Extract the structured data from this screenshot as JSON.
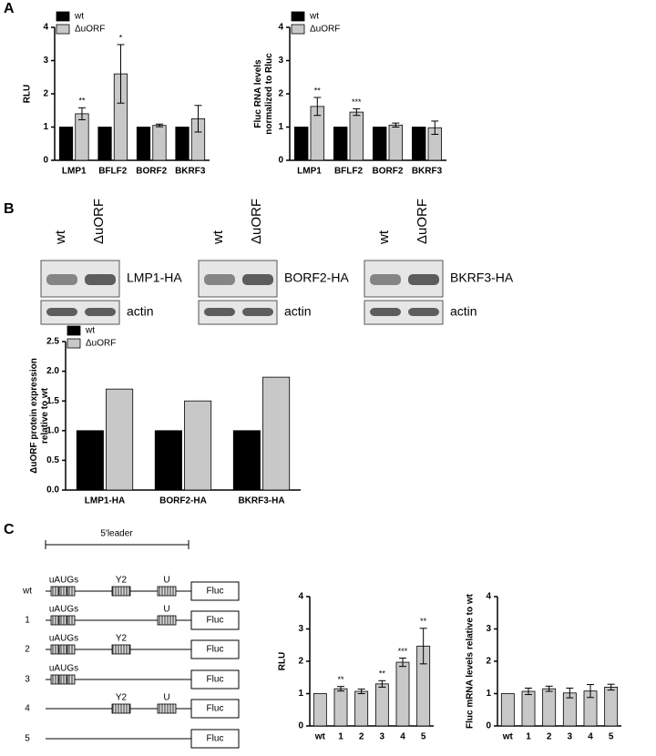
{
  "panels": [
    "A",
    "B",
    "C"
  ],
  "blots": [
    {
      "lanes": [
        "wt",
        "ΔuORF"
      ],
      "labels": [
        "LMP1-HA",
        "actin"
      ]
    },
    {
      "lanes": [
        "wt",
        "ΔuORF"
      ],
      "labels": [
        "BORF2-HA",
        "actin"
      ]
    },
    {
      "lanes": [
        "wt",
        "ΔuORF"
      ],
      "labels": [
        "BKRF3-HA",
        "actin"
      ]
    }
  ],
  "diagram": {
    "bracket": "5'leader",
    "elements": [
      "uAUGs",
      "Y2",
      "U"
    ],
    "reporter": "Fluc",
    "rows": [
      {
        "label": "wt",
        "present": [
          true,
          true,
          true
        ]
      },
      {
        "label": "1",
        "present": [
          true,
          false,
          true
        ]
      },
      {
        "label": "2",
        "present": [
          true,
          true,
          false
        ]
      },
      {
        "label": "3",
        "present": [
          true,
          false,
          false
        ]
      },
      {
        "label": "4",
        "present": [
          false,
          true,
          true
        ]
      },
      {
        "label": "5",
        "present": [
          false,
          false,
          false
        ]
      }
    ]
  },
  "chart_data": [
    {
      "type": "bar",
      "y_label": "RLU",
      "categories": [
        "LMP1",
        "BFLF2",
        "BORF2",
        "BKRF3"
      ],
      "ylim": [
        0,
        4
      ],
      "yticks": [
        0,
        1,
        2,
        3,
        4
      ],
      "legend": "upper left",
      "series": [
        {
          "name": "wt",
          "color": "#000000",
          "values": [
            1,
            1,
            1,
            1
          ]
        },
        {
          "name": "ΔuORF",
          "color": "#c8c8c8",
          "values": [
            1.4,
            2.6,
            1.05,
            1.25
          ],
          "errors": [
            0.18,
            0.88,
            0.04,
            0.4
          ],
          "significance": [
            "**",
            "*",
            null,
            null
          ]
        }
      ]
    },
    {
      "type": "bar",
      "y_label": "Fluc RNA levels normalized to Rluc",
      "categories": [
        "LMP1",
        "BFLF2",
        "BORF2",
        "BKRF3"
      ],
      "ylim": [
        0,
        4
      ],
      "yticks": [
        0,
        1,
        2,
        3,
        4
      ],
      "legend": "upper left",
      "series": [
        {
          "name": "wt",
          "color": "#000000",
          "values": [
            1,
            1,
            1,
            1
          ]
        },
        {
          "name": "ΔuORF",
          "color": "#c8c8c8",
          "values": [
            1.62,
            1.45,
            1.06,
            0.98
          ],
          "errors": [
            0.27,
            0.1,
            0.06,
            0.2
          ],
          "significance": [
            "**",
            "***",
            null,
            null
          ]
        }
      ]
    },
    {
      "type": "bar",
      "y_label": "ΔuORF protein expression relative to wt",
      "categories": [
        "LMP1-HA",
        "BORF2-HA",
        "BKRF3-HA"
      ],
      "ylim": [
        0,
        2.5
      ],
      "yticks": [
        {
          "value": 0,
          "label": "0.0"
        },
        {
          "value": 0.5,
          "label": "0.5"
        },
        {
          "value": 1,
          "label": "1.0"
        },
        {
          "value": 1.5,
          "label": "1.5"
        },
        {
          "value": 2,
          "label": "2.0"
        },
        {
          "value": 2.5,
          "label": "2.5"
        }
      ],
      "legend": "upper left",
      "series": [
        {
          "name": "wt",
          "color": "#000000",
          "values": [
            1,
            1,
            1
          ]
        },
        {
          "name": "ΔuORF",
          "color": "#c8c8c8",
          "values": [
            1.7,
            1.5,
            1.9
          ]
        }
      ]
    },
    {
      "type": "bar",
      "y_label": "RLU",
      "categories": [
        "wt",
        "1",
        "2",
        "3",
        "4",
        "5"
      ],
      "ylim": [
        0,
        4
      ],
      "yticks": [
        0,
        1,
        2,
        3,
        4
      ],
      "series": [
        {
          "color": "#c8c8c8",
          "values": [
            1,
            1.15,
            1.07,
            1.3,
            1.97,
            2.47
          ],
          "errors": [
            null,
            0.07,
            0.07,
            0.1,
            0.13,
            0.55
          ],
          "significance": [
            null,
            "**",
            null,
            "**",
            "***",
            "**"
          ]
        }
      ]
    },
    {
      "type": "bar",
      "y_label": "Fluc mRNA levels relative to wt",
      "categories": [
        "wt",
        "1",
        "2",
        "3",
        "4",
        "5"
      ],
      "ylim": [
        0,
        4
      ],
      "yticks": [
        0,
        1,
        2,
        3,
        4
      ],
      "series": [
        {
          "color": "#c8c8c8",
          "values": [
            1,
            1.07,
            1.15,
            1.02,
            1.08,
            1.2
          ],
          "errors": [
            null,
            0.1,
            0.08,
            0.15,
            0.2,
            0.09
          ]
        }
      ]
    }
  ]
}
